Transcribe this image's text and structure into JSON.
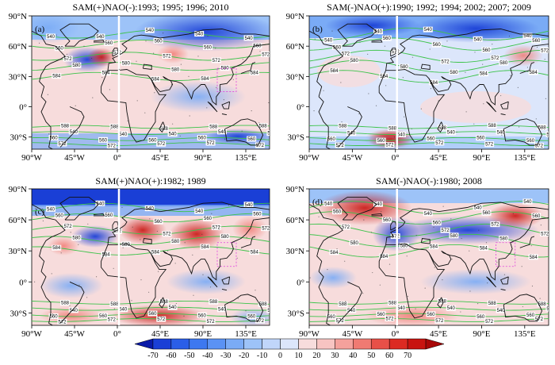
{
  "panels": [
    {
      "label": "(a)",
      "title": "SAM(+)NAO(-):1993; 1995; 1996; 2010"
    },
    {
      "label": "(b)",
      "title": "SAM(-)NAO(+):1990; 1992; 1994; 2002; 2007; 2009"
    },
    {
      "label": "(c)",
      "title": "SAM(+)NAO(+):1982; 1989"
    },
    {
      "label": "(d)",
      "title": "SAM(-)NAO(-):1980; 2008"
    }
  ],
  "axes": {
    "lon_ticks": [
      "90°W",
      "45°W",
      "0°",
      "45°E",
      "90°E",
      "135°E"
    ],
    "lat_ticks": [
      "90°N",
      "60°N",
      "30°N",
      "0°",
      "30°S"
    ]
  },
  "contour_labels": [
    "540",
    "560",
    "572",
    "580",
    "584",
    "588"
  ],
  "colorbar": {
    "ticks": [
      "-70",
      "-60",
      "-50",
      "-40",
      "-30",
      "-20",
      "-10",
      "0",
      "10",
      "20",
      "30",
      "40",
      "50",
      "60",
      "70"
    ],
    "colors": [
      "#0a1aa8",
      "#1a3fd6",
      "#2a5ee8",
      "#3d78f0",
      "#5a92f4",
      "#7aabf6",
      "#9dc3f8",
      "#c0d6fa",
      "#dce6fb",
      "#f7dcdc",
      "#f7c4c2",
      "#f4a19c",
      "#f07a72",
      "#e85048",
      "#dc2a22",
      "#c81410",
      "#a80808"
    ]
  },
  "colors": {
    "contour": "#3cc34a",
    "coast": "#111111",
    "blue_region": "#2a5ad8",
    "red_region": "#e04a40",
    "box": "#e040e0"
  }
}
